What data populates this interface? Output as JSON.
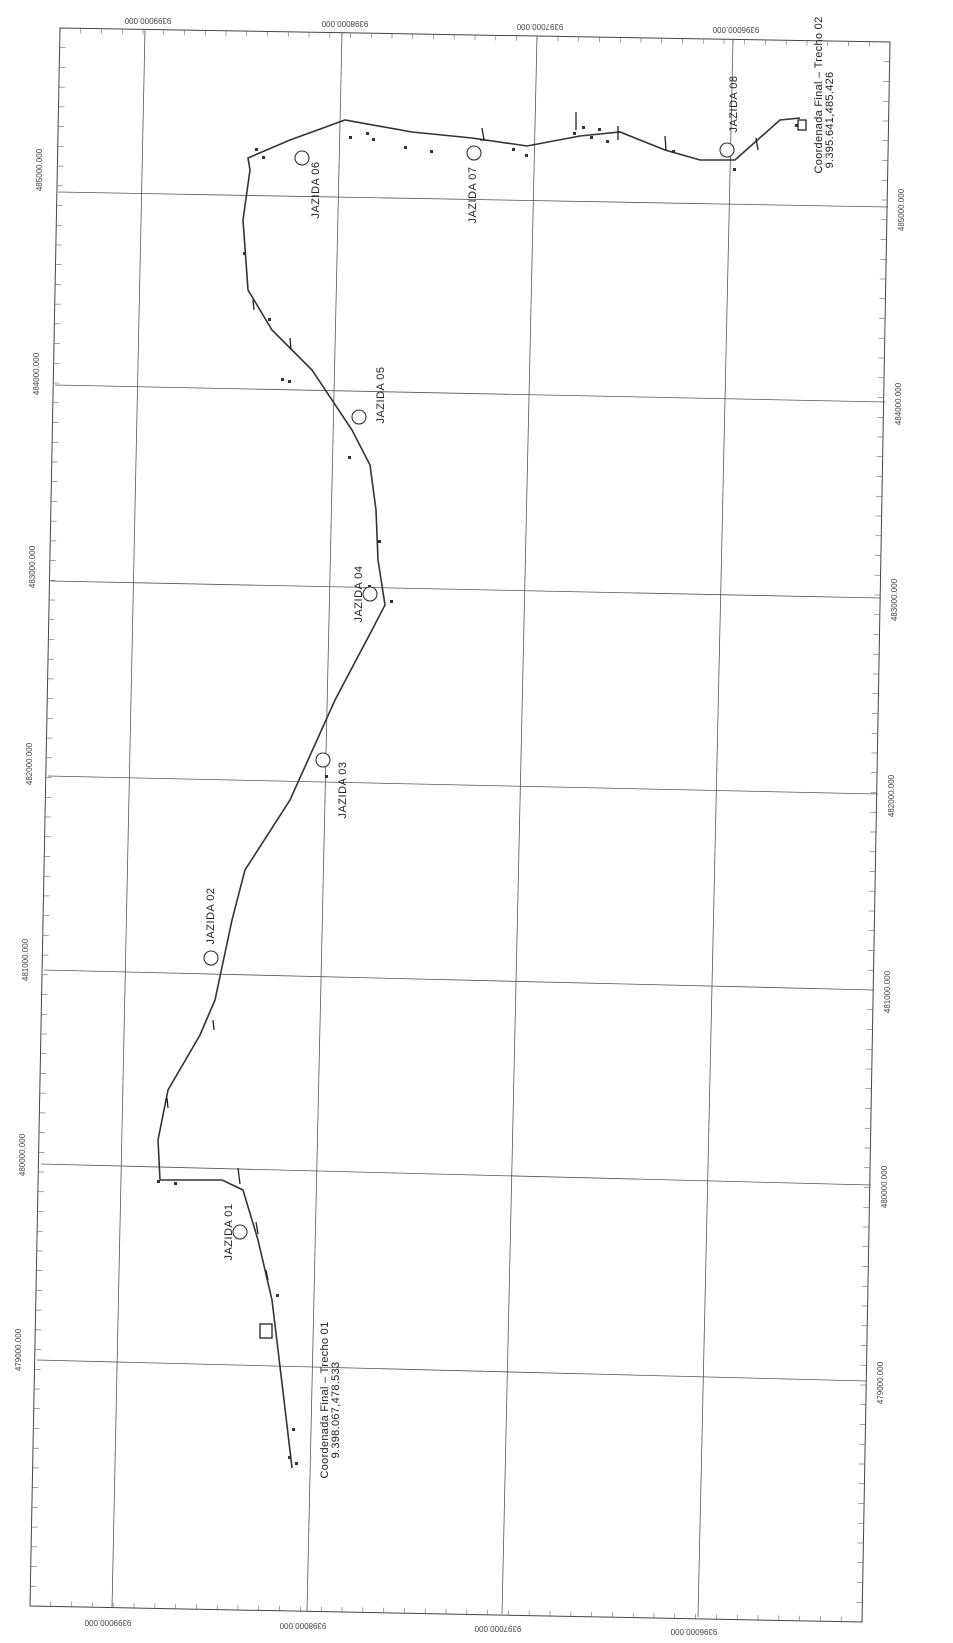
{
  "map": {
    "top_axis_labels": [
      "9399000.000",
      "9398000.000",
      "9397000.000",
      "9396000.000"
    ],
    "bottom_axis_labels": [
      "9399000.000",
      "9398000.000",
      "9397000.000",
      "9396000.000"
    ],
    "left_axis_labels": [
      "485000.000",
      "484000.000",
      "483000.000",
      "482000.000",
      "481000.000",
      "480000.000",
      "479000.000"
    ],
    "right_axis_labels": [
      "485000.000",
      "484000.000",
      "483000.000",
      "482000.000",
      "481000.000",
      "480000.000",
      "479000.000"
    ],
    "jazidas": [
      "JAZIDA 01",
      "JAZIDA 02",
      "JAZIDA 03",
      "JAZIDA 04",
      "JAZIDA 05",
      "JAZIDA 06",
      "JAZIDA 07",
      "JAZIDA 08"
    ],
    "trecho_01": {
      "title": "Coordenada Final  –  Trecho 01",
      "coords": "9.398.067,478.533"
    },
    "trecho_02": {
      "title": "Coordenada Final  –  Trecho 02",
      "coords": "9.395.641,485.426"
    }
  }
}
